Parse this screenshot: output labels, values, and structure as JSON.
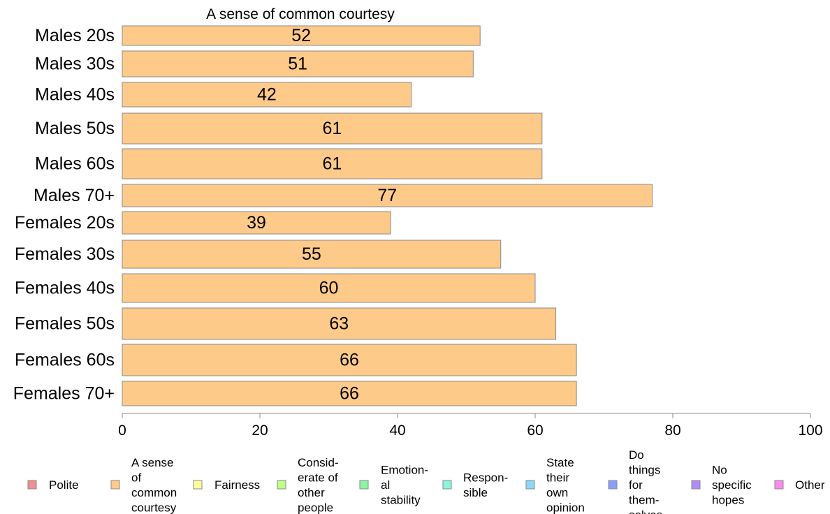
{
  "chart_data": {
    "type": "bar",
    "orientation": "horizontal",
    "title": "A sense of common courtesy",
    "categories": [
      "Males 20s",
      "Males 30s",
      "Males 40s",
      "Males 50s",
      "Males 60s",
      "Males 70+",
      "Females 20s",
      "Females 30s",
      "Females 40s",
      "Females 50s",
      "Females 60s",
      "Females 70+"
    ],
    "values": [
      52,
      51,
      42,
      61,
      61,
      77,
      39,
      55,
      60,
      63,
      66,
      66
    ],
    "xlim": [
      0,
      100
    ],
    "xticks": [
      0,
      20,
      40,
      60,
      80,
      100
    ],
    "grid": false,
    "bar_color": "#FECA8A",
    "legend_position": "bottom",
    "legend": [
      {
        "label": "Polite",
        "color": "#F28E8E"
      },
      {
        "label": "A sense of common courtesy",
        "color": "#FECA8A"
      },
      {
        "label": "Fairness",
        "color": "#FFFF99"
      },
      {
        "label": "Consid-erate of other people",
        "color": "#BFFF8A"
      },
      {
        "label": "Emotion-al stability",
        "color": "#8AF5A3"
      },
      {
        "label": "Respon-sible",
        "color": "#8AF5DB"
      },
      {
        "label": "State their own opinion",
        "color": "#8AD9FA"
      },
      {
        "label": "Do things for them-selves",
        "color": "#8A9EF7"
      },
      {
        "label": "No specific hopes",
        "color": "#B48AF7"
      },
      {
        "label": "Other",
        "color": "#FA8AF0"
      }
    ]
  }
}
